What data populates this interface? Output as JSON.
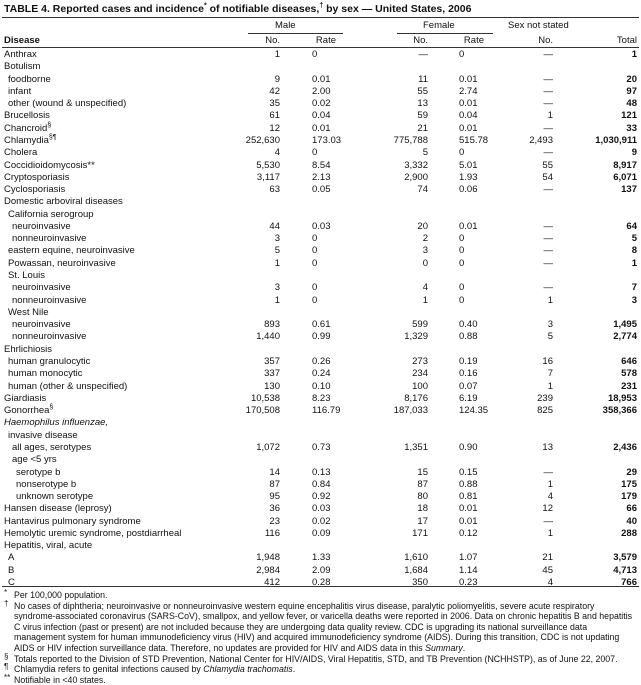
{
  "title": {
    "text": "TABLE 4. Reported cases and incidence",
    "sup1": "*",
    "mid": " of notifiable diseases,",
    "sup2": "†",
    "end": " by sex — United States, 2006"
  },
  "headers": {
    "disease": "Disease",
    "male": "Male",
    "female": "Female",
    "sex_not_stated": "Sex not stated",
    "no": "No.",
    "rate": "Rate",
    "total": "Total"
  },
  "rows": [
    {
      "name": "Anthrax",
      "indent": 0,
      "m_no": "1",
      "m_rate": "0",
      "f_no": "—",
      "f_rate": "0",
      "s_no": "—",
      "total": "1"
    },
    {
      "name": "Botulism",
      "indent": 0
    },
    {
      "name": "foodborne",
      "indent": 1,
      "m_no": "9",
      "m_rate": "0.01",
      "f_no": "11",
      "f_rate": "0.01",
      "s_no": "—",
      "total": "20"
    },
    {
      "name": "infant",
      "indent": 1,
      "m_no": "42",
      "m_rate": "2.00",
      "f_no": "55",
      "f_rate": "2.74",
      "s_no": "—",
      "total": "97"
    },
    {
      "name": "other (wound & unspecified)",
      "indent": 1,
      "m_no": "35",
      "m_rate": "0.02",
      "f_no": "13",
      "f_rate": "0.01",
      "s_no": "—",
      "total": "48"
    },
    {
      "name": "Brucellosis",
      "indent": 0,
      "m_no": "61",
      "m_rate": "0.04",
      "f_no": "59",
      "f_rate": "0.04",
      "s_no": "1",
      "total": "121"
    },
    {
      "name": "Chancroid",
      "sup": "§",
      "indent": 0,
      "m_no": "12",
      "m_rate": "0.01",
      "f_no": "21",
      "f_rate": "0.01",
      "s_no": "—",
      "total": "33"
    },
    {
      "name": "Chlamydia",
      "sup": "§¶",
      "indent": 0,
      "m_no": "252,630",
      "m_rate": "173.03",
      "f_no": "775,788",
      "f_rate": "515.78",
      "s_no": "2,493",
      "total": "1,030,911"
    },
    {
      "name": "Cholera",
      "indent": 0,
      "m_no": "4",
      "m_rate": "0",
      "f_no": "5",
      "f_rate": "0",
      "s_no": "—",
      "total": "9"
    },
    {
      "name": "Coccidioidomycosis**",
      "indent": 0,
      "m_no": "5,530",
      "m_rate": "8.54",
      "f_no": "3,332",
      "f_rate": "5.01",
      "s_no": "55",
      "total": "8,917"
    },
    {
      "name": "Cryptosporiasis",
      "indent": 0,
      "m_no": "3,117",
      "m_rate": "2.13",
      "f_no": "2,900",
      "f_rate": "1.93",
      "s_no": "54",
      "total": "6,071"
    },
    {
      "name": "Cyclosporiasis",
      "indent": 0,
      "m_no": "63",
      "m_rate": "0.05",
      "f_no": "74",
      "f_rate": "0.06",
      "s_no": "—",
      "total": "137"
    },
    {
      "name": "Domestic arboviral diseases",
      "indent": 0
    },
    {
      "name": "California serogroup",
      "indent": 1
    },
    {
      "name": "neuroinvasive",
      "indent": 2,
      "m_no": "44",
      "m_rate": "0.03",
      "f_no": "20",
      "f_rate": "0.01",
      "s_no": "—",
      "total": "64"
    },
    {
      "name": "nonneuroinvasive",
      "indent": 2,
      "m_no": "3",
      "m_rate": "0",
      "f_no": "2",
      "f_rate": "0",
      "s_no": "—",
      "total": "5"
    },
    {
      "name": "eastern equine, neuroinvasive",
      "indent": 1,
      "m_no": "5",
      "m_rate": "0",
      "f_no": "3",
      "f_rate": "0",
      "s_no": "—",
      "total": "8"
    },
    {
      "name": "Powassan, neuroinvasive",
      "indent": 1,
      "m_no": "1",
      "m_rate": "0",
      "f_no": "0",
      "f_rate": "0",
      "s_no": "—",
      "total": "1"
    },
    {
      "name": "St. Louis",
      "indent": 1
    },
    {
      "name": "neuroinvasive",
      "indent": 2,
      "m_no": "3",
      "m_rate": "0",
      "f_no": "4",
      "f_rate": "0",
      "s_no": "—",
      "total": "7"
    },
    {
      "name": "nonneuroinvasive",
      "indent": 2,
      "m_no": "1",
      "m_rate": "0",
      "f_no": "1",
      "f_rate": "0",
      "s_no": "1",
      "total": "3"
    },
    {
      "name": "West Nile",
      "indent": 1
    },
    {
      "name": "neuroinvasive",
      "indent": 2,
      "m_no": "893",
      "m_rate": "0.61",
      "f_no": "599",
      "f_rate": "0.40",
      "s_no": "3",
      "total": "1,495"
    },
    {
      "name": "nonneuroinvasive",
      "indent": 2,
      "m_no": "1,440",
      "m_rate": "0.99",
      "f_no": "1,329",
      "f_rate": "0.88",
      "s_no": "5",
      "total": "2,774"
    },
    {
      "name": "Ehrlichiosis",
      "indent": 0
    },
    {
      "name": "human granulocytic",
      "indent": 1,
      "m_no": "357",
      "m_rate": "0.26",
      "f_no": "273",
      "f_rate": "0.19",
      "s_no": "16",
      "total": "646"
    },
    {
      "name": "human monocytic",
      "indent": 1,
      "m_no": "337",
      "m_rate": "0.24",
      "f_no": "234",
      "f_rate": "0.16",
      "s_no": "7",
      "total": "578"
    },
    {
      "name": "human (other & unspecified)",
      "indent": 1,
      "m_no": "130",
      "m_rate": "0.10",
      "f_no": "100",
      "f_rate": "0.07",
      "s_no": "1",
      "total": "231"
    },
    {
      "name": "Giardiasis",
      "indent": 0,
      "m_no": "10,538",
      "m_rate": "8.23",
      "f_no": "8,176",
      "f_rate": "6.19",
      "s_no": "239",
      "total": "18,953"
    },
    {
      "name": "Gonorrhea",
      "sup": "§",
      "indent": 0,
      "m_no": "170,508",
      "m_rate": "116.79",
      "f_no": "187,033",
      "f_rate": "124.35",
      "s_no": "825",
      "total": "358,366"
    },
    {
      "name": "Haemophilus influenzae,",
      "italic": true,
      "indent": 0
    },
    {
      "name": "invasive disease",
      "indent": 1
    },
    {
      "name": "all ages, serotypes",
      "indent": 2,
      "m_no": "1,072",
      "m_rate": "0.73",
      "f_no": "1,351",
      "f_rate": "0.90",
      "s_no": "13",
      "total": "2,436"
    },
    {
      "name": "age <5 yrs",
      "indent": 2
    },
    {
      "name": "serotype b",
      "indent": 3,
      "m_no": "14",
      "m_rate": "0.13",
      "f_no": "15",
      "f_rate": "0.15",
      "s_no": "—",
      "total": "29"
    },
    {
      "name": "nonserotype b",
      "indent": 3,
      "m_no": "87",
      "m_rate": "0.84",
      "f_no": "87",
      "f_rate": "0.88",
      "s_no": "1",
      "total": "175"
    },
    {
      "name": "unknown serotype",
      "indent": 3,
      "m_no": "95",
      "m_rate": "0.92",
      "f_no": "80",
      "f_rate": "0.81",
      "s_no": "4",
      "total": "179"
    },
    {
      "name": "Hansen disease (leprosy)",
      "indent": 0,
      "m_no": "36",
      "m_rate": "0.03",
      "f_no": "18",
      "f_rate": "0.01",
      "s_no": "12",
      "total": "66"
    },
    {
      "name": "Hantavirus pulmonary syndrome",
      "indent": 0,
      "m_no": "23",
      "m_rate": "0.02",
      "f_no": "17",
      "f_rate": "0.01",
      "s_no": "—",
      "total": "40"
    },
    {
      "name": "Hemolytic uremic syndrome, postdiarrheal",
      "indent": 0,
      "m_no": "116",
      "m_rate": "0.09",
      "f_no": "171",
      "f_rate": "0.12",
      "s_no": "1",
      "total": "288"
    },
    {
      "name": "Hepatitis, viral, acute",
      "indent": 0
    },
    {
      "name": "A",
      "indent": 1,
      "m_no": "1,948",
      "m_rate": "1.33",
      "f_no": "1,610",
      "f_rate": "1.07",
      "s_no": "21",
      "total": "3,579"
    },
    {
      "name": "B",
      "indent": 1,
      "m_no": "2,984",
      "m_rate": "2.09",
      "f_no": "1,684",
      "f_rate": "1.14",
      "s_no": "45",
      "total": "4,713"
    },
    {
      "name": "C",
      "indent": 1,
      "m_no": "412",
      "m_rate": "0.28",
      "f_no": "350",
      "f_rate": "0.23",
      "s_no": "4",
      "total": "766"
    }
  ],
  "footnotes": {
    "n1": {
      "mark": "*",
      "text": "Per 100,000 population."
    },
    "n2": {
      "mark": "†",
      "text": "No cases of diphtheria; neuroinvasive or nonneuroinvasive western equine encephalitis virus disease, paralytic poliomyelitis, severe acute respiratory syndrome-associated coronavirus (SARS-CoV), smallpox, and yellow fever, or varicella deaths were reported in 2006. Data on chronic hepatitis B and hepatitis C virus infection (past or present) are not included because they are undergoing data quality review. CDC is upgrading its national surveillance data management system for human immunodeficiency virus (HIV) and acquired immunodeficiency syndrome (AIDS). During this transition, CDC is not updating AIDS or HIV infection surveillance data. Therefore, no updates are provided for HIV and AIDS data in this ",
      "em": "Summary",
      "end": "."
    },
    "n3": {
      "mark": "§",
      "text": "Totals reported to the Division of STD Prevention, National Center for HIV/AIDS, Viral Hepatitis, STD, and TB Prevention (NCHHSTP), as of June 22, 2007."
    },
    "n4": {
      "mark": "¶",
      "text": "Chlamydia refers to genital infections caused by ",
      "em": "Chlamydia trachomatis",
      "end": "."
    },
    "n5": {
      "mark": "**",
      "text": "Notifiable in <40 states."
    }
  }
}
